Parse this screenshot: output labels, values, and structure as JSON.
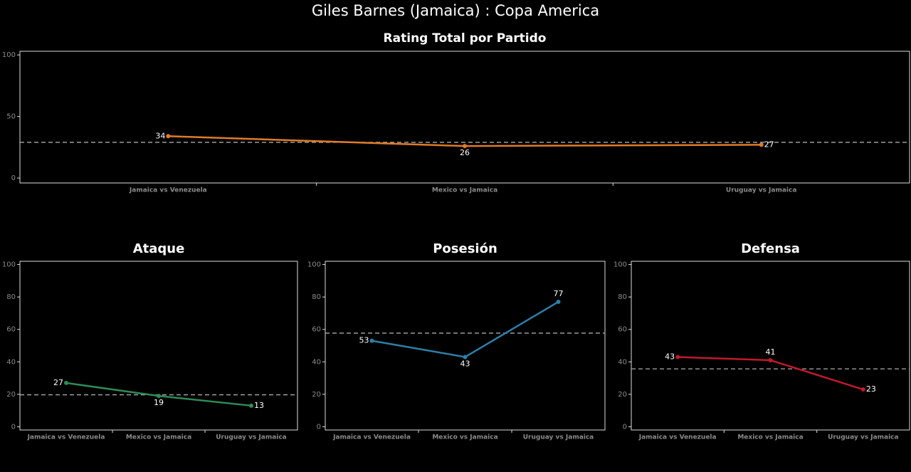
{
  "title": "Giles Barnes (Jamaica) :  Copa  America",
  "chart_data": [
    {
      "type": "line",
      "title": "Rating Total por Partido",
      "categories": [
        "Jamaica vs Venezuela",
        "Mexico vs Jamaica",
        "Uruguay vs Jamaica"
      ],
      "values": [
        34,
        26,
        27
      ],
      "color": "#e07b28",
      "average": 29,
      "ylim": [
        -4,
        103
      ],
      "yticks": [
        0,
        50,
        100
      ]
    },
    {
      "type": "line",
      "title": "Ataque",
      "categories": [
        "Jamaica vs Venezuela",
        "Mexico vs Jamaica",
        "Uruguay vs Jamaica"
      ],
      "values": [
        27,
        19,
        13
      ],
      "color": "#2e8b57",
      "average": 19.7,
      "ylim": [
        -2,
        102
      ],
      "yticks": [
        0,
        20,
        40,
        60,
        80,
        100
      ]
    },
    {
      "type": "line",
      "title": "Posesión",
      "categories": [
        "Jamaica vs Venezuela",
        "Mexico vs Jamaica",
        "Uruguay vs Jamaica"
      ],
      "values": [
        53,
        43,
        77
      ],
      "color": "#2e7fa8",
      "average": 57.7,
      "ylim": [
        -2,
        102
      ],
      "yticks": [
        0,
        20,
        40,
        60,
        80,
        100
      ]
    },
    {
      "type": "line",
      "title": "Defensa",
      "categories": [
        "Jamaica vs Venezuela",
        "Mexico vs Jamaica",
        "Uruguay vs Jamaica"
      ],
      "values": [
        43,
        41,
        23
      ],
      "color": "#c0192c",
      "average": 35.7,
      "ylim": [
        -2,
        102
      ],
      "yticks": [
        0,
        20,
        40,
        60,
        80,
        100
      ]
    }
  ]
}
